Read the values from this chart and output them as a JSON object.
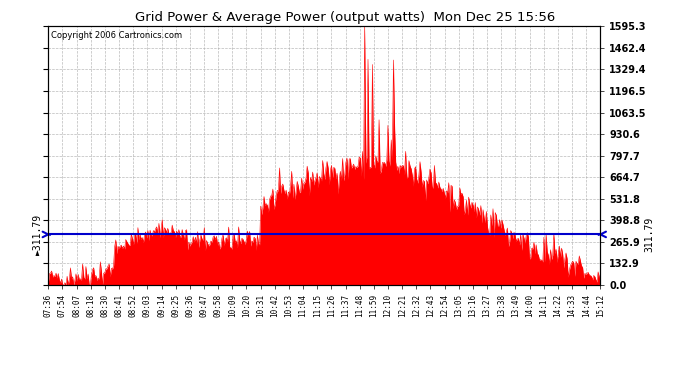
{
  "title": "Grid Power & Average Power (output watts)  Mon Dec 25 15:56",
  "copyright": "Copyright 2006 Cartronics.com",
  "avg_value": 311.79,
  "y_max": 1595.3,
  "y_ticks": [
    0.0,
    132.9,
    265.9,
    398.8,
    531.8,
    664.7,
    797.7,
    930.6,
    1063.5,
    1196.5,
    1329.4,
    1462.4,
    1595.3
  ],
  "x_labels": [
    "07:36",
    "07:54",
    "08:07",
    "08:18",
    "08:30",
    "08:41",
    "08:52",
    "09:03",
    "09:14",
    "09:25",
    "09:36",
    "09:47",
    "09:58",
    "10:09",
    "10:20",
    "10:31",
    "10:42",
    "10:53",
    "11:04",
    "11:15",
    "11:26",
    "11:37",
    "11:48",
    "11:59",
    "12:10",
    "12:21",
    "12:32",
    "12:43",
    "12:54",
    "13:05",
    "13:16",
    "13:27",
    "13:38",
    "13:49",
    "14:00",
    "14:11",
    "14:22",
    "14:33",
    "14:44",
    "15:12"
  ],
  "bg_color": "#ffffff",
  "fill_color": "#ff0000",
  "avg_line_color": "#0000cc",
  "grid_color": "#aaaaaa",
  "title_color": "#000000"
}
